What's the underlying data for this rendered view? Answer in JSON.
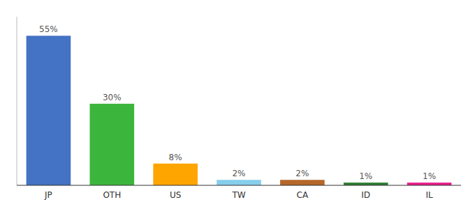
{
  "chart_data": {
    "type": "bar",
    "categories": [
      "JP",
      "OTH",
      "US",
      "TW",
      "CA",
      "ID",
      "IL"
    ],
    "values": [
      55,
      30,
      8,
      2,
      2,
      1,
      1
    ],
    "value_labels": [
      "55%",
      "30%",
      "8%",
      "2%",
      "2%",
      "1%",
      "1%"
    ],
    "colors": [
      "#4472c4",
      "#3cb53c",
      "#ffa500",
      "#87ceeb",
      "#b5682a",
      "#2e7d32",
      "#e91e8c"
    ],
    "ylim": [
      0,
      62
    ],
    "data_labels": true,
    "tick_labels": "x"
  }
}
